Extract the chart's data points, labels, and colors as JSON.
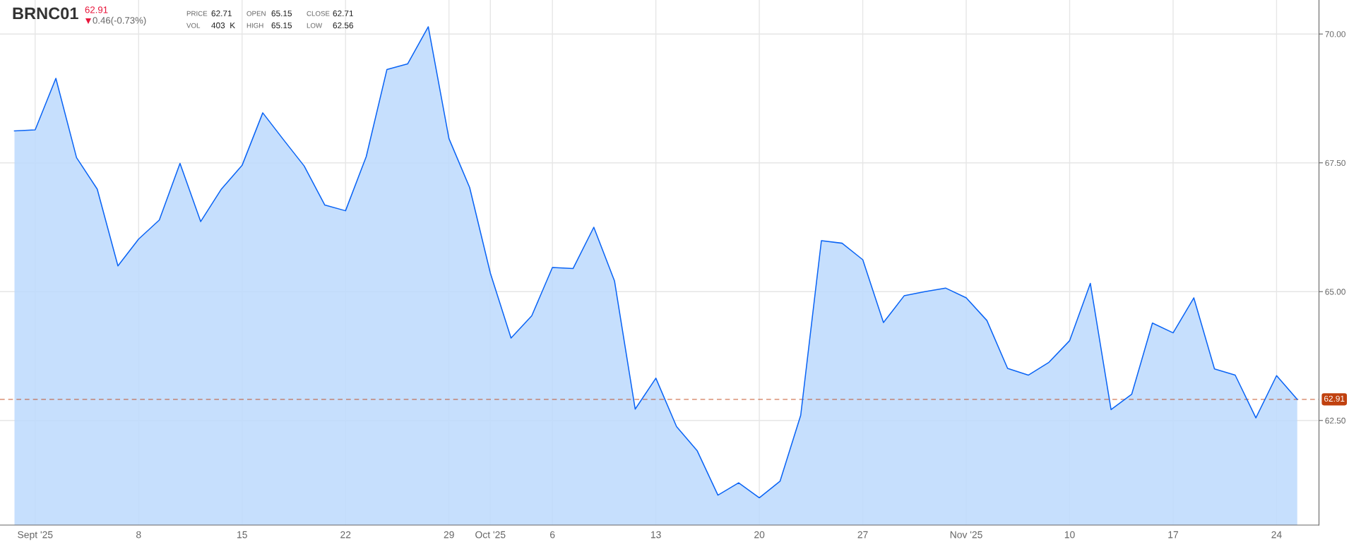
{
  "chart_data": {
    "type": "area",
    "title": "BRNC01",
    "subtitle": "62.91",
    "annotations": [
      "0.46(-0.73%)",
      "PRICE",
      "62.71",
      "OPEN",
      "65.15",
      "CLOSE",
      "62.71",
      "VOL",
      "403  K",
      "HIGH",
      "65.15",
      "LOW",
      "62.56"
    ],
    "categories": [
      null,
      "Sept '25",
      null,
      null,
      null,
      null,
      "8",
      null,
      null,
      null,
      null,
      "15",
      null,
      null,
      null,
      null,
      "22",
      null,
      null,
      null,
      null,
      "29",
      null,
      "Oct '25",
      null,
      null,
      "6",
      null,
      null,
      null,
      null,
      "13",
      null,
      null,
      null,
      null,
      "20",
      null,
      null,
      null,
      null,
      "27",
      null,
      null,
      null,
      null,
      "Nov '25",
      null,
      null,
      null,
      null,
      "10",
      null,
      null,
      null,
      null,
      "17",
      null,
      null,
      null,
      null,
      "24",
      null
    ],
    "series": [
      {
        "color": "#0a64f5",
        "values": [
          68.12,
          68.14,
          69.14,
          67.6,
          66.99,
          65.5,
          66.02,
          66.39,
          67.49,
          66.36,
          66.99,
          67.45,
          68.47,
          67.95,
          67.44,
          66.68,
          66.57,
          67.62,
          69.31,
          69.42,
          70.14,
          67.97,
          67.02,
          65.36,
          64.1,
          64.53,
          65.47,
          65.45,
          66.25,
          65.21,
          62.72,
          63.32,
          62.38,
          61.91,
          61.05,
          61.29,
          61.0,
          61.32,
          62.6,
          65.99,
          65.94,
          65.62,
          64.4,
          64.92,
          65.0,
          65.07,
          64.88,
          64.44,
          63.51,
          63.38,
          63.63,
          64.05,
          65.16,
          62.71,
          63.01,
          64.39,
          64.2,
          64.88,
          63.5,
          63.38,
          62.55,
          63.37,
          62.91
        ]
      }
    ],
    "ylim": [
      60.47,
      70.66
    ],
    "yticks": [
      {
        "value": 62.5,
        "label": "62.50"
      },
      {
        "value": 65,
        "label": "65.00"
      },
      {
        "value": 67.5,
        "label": "67.50"
      },
      {
        "value": 70,
        "label": "70.00"
      }
    ],
    "ref_lines": [
      {
        "axis": "y",
        "value": 62.91,
        "label": "62.91",
        "color": "#c0410f",
        "line_style": "dashed"
      }
    ],
    "grid": true
  }
}
